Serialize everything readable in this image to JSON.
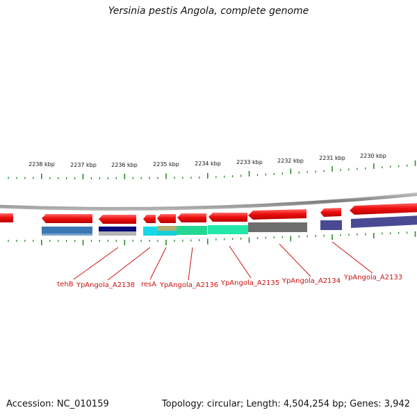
{
  "title": "Yersinia pestis Angola, complete genome",
  "scale": {
    "labels": [
      "2238 kbp",
      "2237 kbp",
      "2236 kbp",
      "2235 kbp",
      "2234 kbp",
      "2233 kbp",
      "2232 kbp",
      "2231 kbp",
      "2230 kbp"
    ]
  },
  "genes": {
    "labels": [
      "tehB",
      "YpAngola_A2138",
      "resA",
      "YpAngola_A2136",
      "YpAngola_A2135",
      "YpAngola_A2134",
      "YpAngola_A2133"
    ]
  },
  "colors": {
    "gene": "#ee1111",
    "backbone": "#888888",
    "tick": "#2a8a2a",
    "label": "#cc1111"
  },
  "footer": {
    "accession": "Accession: NC_010159",
    "summary": "Topology: circular; Length: 4,504,254 bp; Genes: 3,942"
  }
}
